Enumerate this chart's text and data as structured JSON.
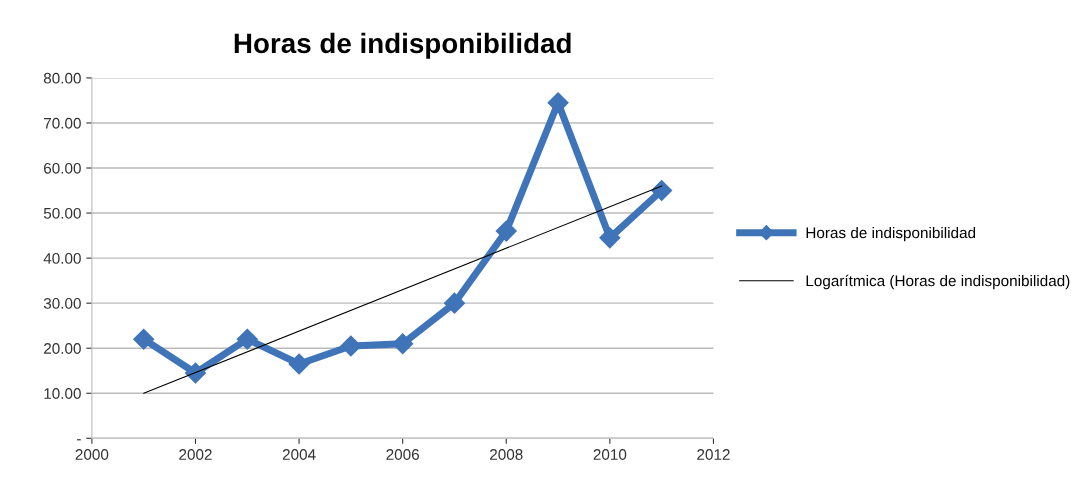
{
  "chart_data": {
    "type": "line",
    "title": "Horas de indisponibilidad",
    "x": [
      2001,
      2002,
      2003,
      2004,
      2005,
      2006,
      2007,
      2008,
      2009,
      2010,
      2011
    ],
    "series": [
      {
        "name": "Horas de indisponibilidad",
        "color": "#3f74b8",
        "marker": "diamond",
        "line_style": "solid",
        "values": [
          22,
          14.5,
          22,
          16.5,
          20.5,
          21,
          30,
          46,
          74.5,
          44.5,
          55
        ]
      },
      {
        "name": "Logarítmica (Horas de indisponibilidad)",
        "color": "#000000",
        "marker": "none",
        "line_style": "solid",
        "x": [
          2001,
          2011
        ],
        "values": [
          10,
          56
        ]
      }
    ],
    "xlim": [
      2000,
      2012
    ],
    "xticks": [
      2000,
      2002,
      2004,
      2006,
      2008,
      2010,
      2012
    ],
    "ylim": [
      0,
      80
    ],
    "yticks": [
      {
        "value": 0,
        "label": "-"
      },
      {
        "value": 10,
        "label": "10.00"
      },
      {
        "value": 20,
        "label": "20.00"
      },
      {
        "value": 30,
        "label": "30.00"
      },
      {
        "value": 40,
        "label": "40.00"
      },
      {
        "value": 50,
        "label": "50.00"
      },
      {
        "value": 60,
        "label": "60.00"
      },
      {
        "value": 70,
        "label": "70.00"
      },
      {
        "value": 80,
        "label": "80.00"
      }
    ],
    "grid": "y",
    "legend": "right"
  }
}
